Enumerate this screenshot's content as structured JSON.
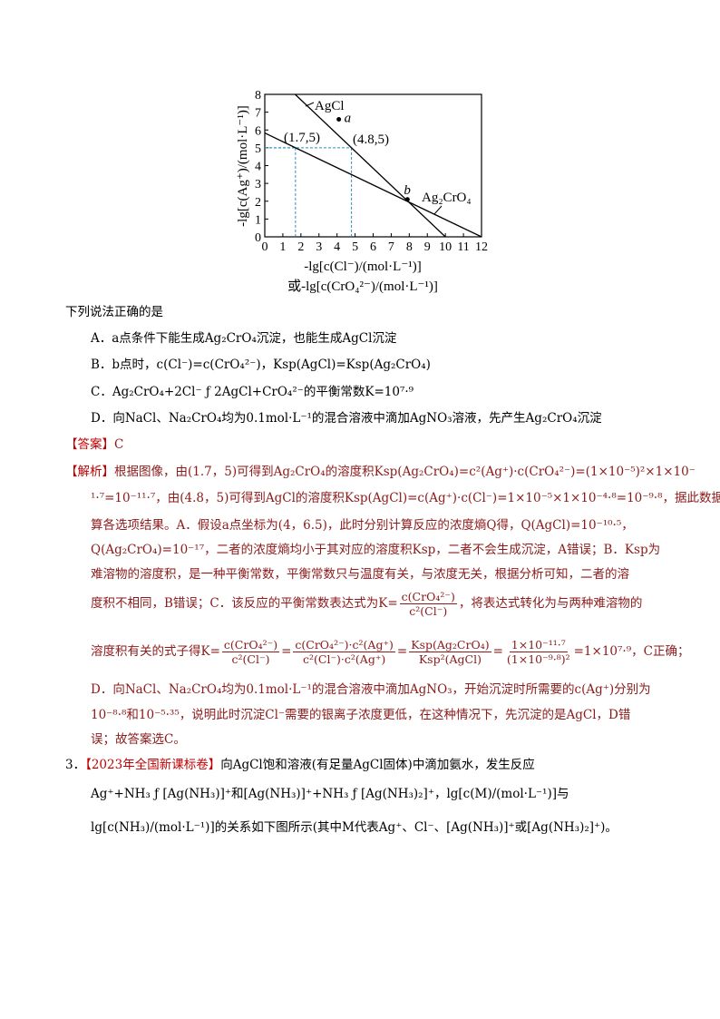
{
  "chart_data": {
    "type": "line",
    "ylabel": "-lg[c(Ag⁺)/(mol·L⁻¹)]",
    "xlabel": "-lg[c(Cl⁻)/(mol·L⁻¹)]",
    "xlabel2": "或-lg[c(CrO₄²⁻)/(mol·L⁻¹)]",
    "xlim": [
      0,
      12
    ],
    "ylim": [
      0,
      8
    ],
    "x_ticks": [
      "0",
      "1",
      "2",
      "3",
      "4",
      "5",
      "6",
      "7",
      "8",
      "9",
      "10",
      "11",
      "12"
    ],
    "y_ticks": [
      "0",
      "1",
      "2",
      "3",
      "4",
      "5",
      "6",
      "7",
      "8"
    ],
    "grid": false,
    "series": [
      {
        "name": "AgCl",
        "points": [
          [
            1.68,
            8
          ],
          [
            4.8,
            5
          ],
          [
            10,
            0
          ]
        ]
      },
      {
        "name": "Ag₂CrO₄",
        "points": [
          [
            0,
            5.83
          ],
          [
            1.7,
            5
          ],
          [
            12,
            0
          ]
        ]
      }
    ],
    "points": [
      {
        "label": "a",
        "x": 4.1,
        "y": 6.6
      },
      {
        "label": "b",
        "x": 7.9,
        "y": 2.1
      }
    ],
    "annotations": [
      "(1.7,5)",
      "(4.8,5)"
    ],
    "guide_lines": [
      [
        1.7,
        5
      ],
      [
        4.8,
        5
      ]
    ],
    "guide_color": "#2a8fbf"
  },
  "question": {
    "prompt": "下列说法正确的是",
    "options": [
      "A．a点条件下能生成Ag₂CrO₄沉淀，也能生成AgCl沉淀",
      "B．b点时，c(Cl⁻)=c(CrO₄²⁻)，Ksp(AgCl)=Ksp(Ag₂CrO₄)",
      "C．Ag₂CrO₄+2Cl⁻ ƒ  2AgCl+CrO₄²⁻的平衡常数K=10⁷·⁹",
      "D．向NaCl、Na₂CrO₄均为0.1mol·L⁻¹的混合溶液中滴加AgNO₃溶液，先产生Ag₂CrO₄沉淀"
    ]
  },
  "answer": {
    "label": "【答案】",
    "value": "C"
  },
  "analysis": {
    "label": "【解析】",
    "lines": [
      "根据图像，由(1.7，5)可得到Ag₂CrO₄的溶度积Ksp(Ag₂CrO₄)=c²(Ag⁺)·c(CrO₄²⁻)=(1×10⁻⁵)²×1×10⁻",
      "¹·⁷=10⁻¹¹·⁷，由(4.8，5)可得到AgCl的溶度积Ksp(AgCl)=c(Ag⁺)·c(Cl⁻)=1×10⁻⁵×1×10⁻⁴·⁸=10⁻⁹·⁸，据此数据计",
      "算各选项结果。A．假设a点坐标为(4，6.5)，此时分别计算反应的浓度熵Q得，Q(AgCl)=10⁻¹⁰·⁵，",
      "Q(Ag₂CrO₄)=10⁻¹⁷，二者的浓度熵均小于其对应的溶度积Ksp，二者不会生成沉淀，A错误；B．Ksp为",
      "难溶物的溶度积，是一种平衡常数，平衡常数只与温度有关，与浓度无关，根据分析可知，二者的溶"
    ],
    "line6_pre": "度积不相同，B错误；C．该反应的平衡常数表达式为K=",
    "line6_post": "，将表达式转化为与两种难溶物的",
    "k_num": "c(CrO₄²⁻)",
    "k_den": "c²(Cl⁻)",
    "line7_pre": "溶度积有关的式子得K=",
    "f2_num": "c(CrO₄²⁻)·c²(Ag⁺)",
    "f2_den": "c²(Cl⁻)·c²(Ag⁺)",
    "f3_num": "Ksp(Ag₂CrO₄)",
    "f3_den": "Ksp²(AgCl)",
    "f4_num": "1×10⁻¹¹·⁷",
    "f4_den": "(1×10⁻⁹·⁸)²",
    "line7_post": "=1×10⁷·⁹，C正确；",
    "line8": "D．向NaCl、Na₂CrO₄均为0.1mol·L⁻¹的混合溶液中滴加AgNO₃，开始沉淀时所需要的c(Ag⁺)分别为",
    "line9": "10⁻⁸·⁸和10⁻⁵·³⁵，说明此时沉淀Cl⁻需要的银离子浓度更低，在这种情况下，先沉淀的是AgCl，D错",
    "line10": "误；故答案选C。"
  },
  "q3": {
    "number": "3．",
    "source": "【2023年全国新课标卷】",
    "line1": "向AgCl饱和溶液(有足量AgCl固体)中滴加氨水，发生反应",
    "line2": "Ag⁺+NH₃ ƒ  [Ag(NH₃)]⁺和[Ag(NH₃)]⁺+NH₃ ƒ  [Ag(NH₃)₂]⁺，lg[c(M)/(mol·L⁻¹)]与",
    "line3": "lg[c(NH₃)/(mol·L⁻¹)]的关系如下图所示(其中M代表Ag⁺、Cl⁻、[Ag(NH₃)]⁺或[Ag(NH₃)₂]⁺)。"
  }
}
